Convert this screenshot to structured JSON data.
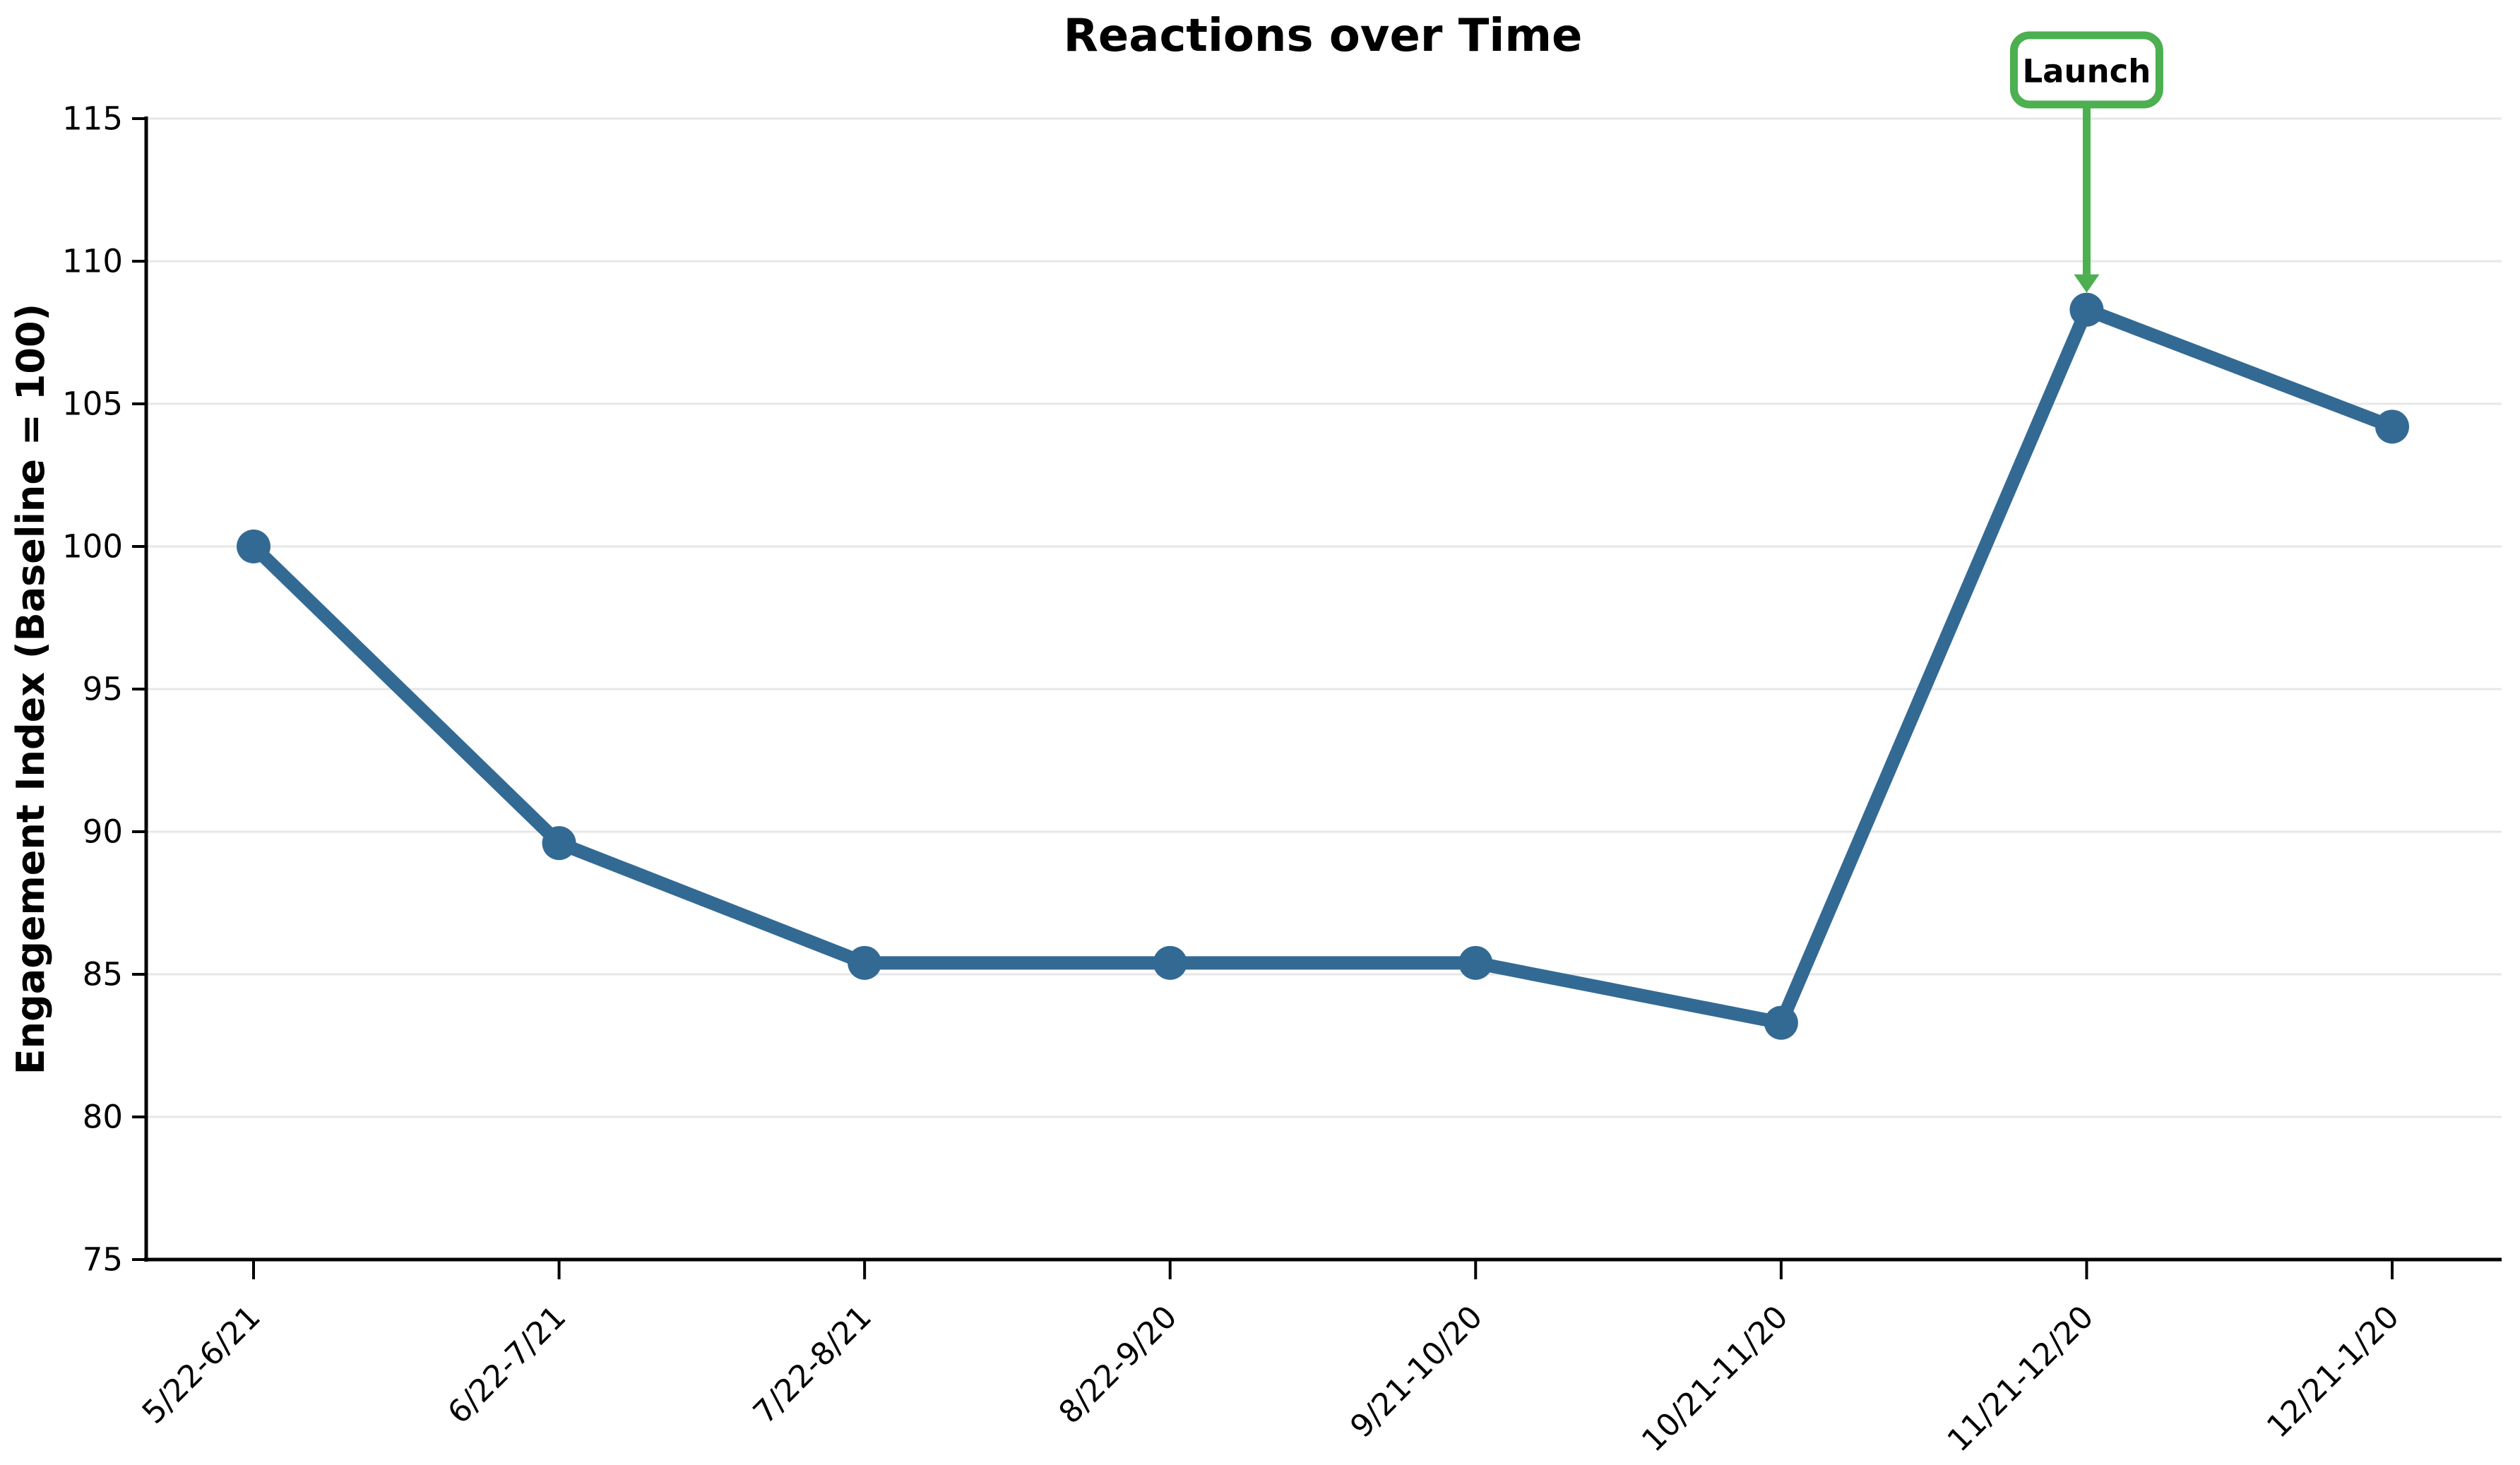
{
  "chart_data": {
    "type": "line",
    "title": "Reactions over Time",
    "xlabel": "",
    "ylabel": "Engagement Index (Baseline = 100)",
    "categories": [
      "5/22-6/21",
      "6/22-7/21",
      "7/22-8/21",
      "8/22-9/20",
      "9/21-10/20",
      "10/21-11/20",
      "11/21-12/20",
      "12/21-1/20"
    ],
    "values": [
      100.0,
      89.6,
      85.4,
      85.4,
      85.4,
      83.3,
      108.3,
      104.2
    ],
    "ylim": [
      75,
      115
    ],
    "yticks": [
      75,
      80,
      85,
      90,
      95,
      100,
      105,
      110,
      115
    ],
    "x_tick_rotation_deg": 45,
    "grid": "horizontal-only",
    "legend": "none",
    "annotation": {
      "label": "Launch",
      "category": "11/21-12/20",
      "category_index": 6,
      "value": 108.3
    },
    "styles": {
      "line_color": "#336a94",
      "marker_color": "#336a94",
      "marker_shape": "circle",
      "annotation_color": "#4caf50",
      "annotation_box_fill": "#ffffff",
      "grid_color": "#e7e7e7",
      "axis_color": "#000000",
      "text_color": "#000000",
      "background": "#ffffff"
    }
  }
}
